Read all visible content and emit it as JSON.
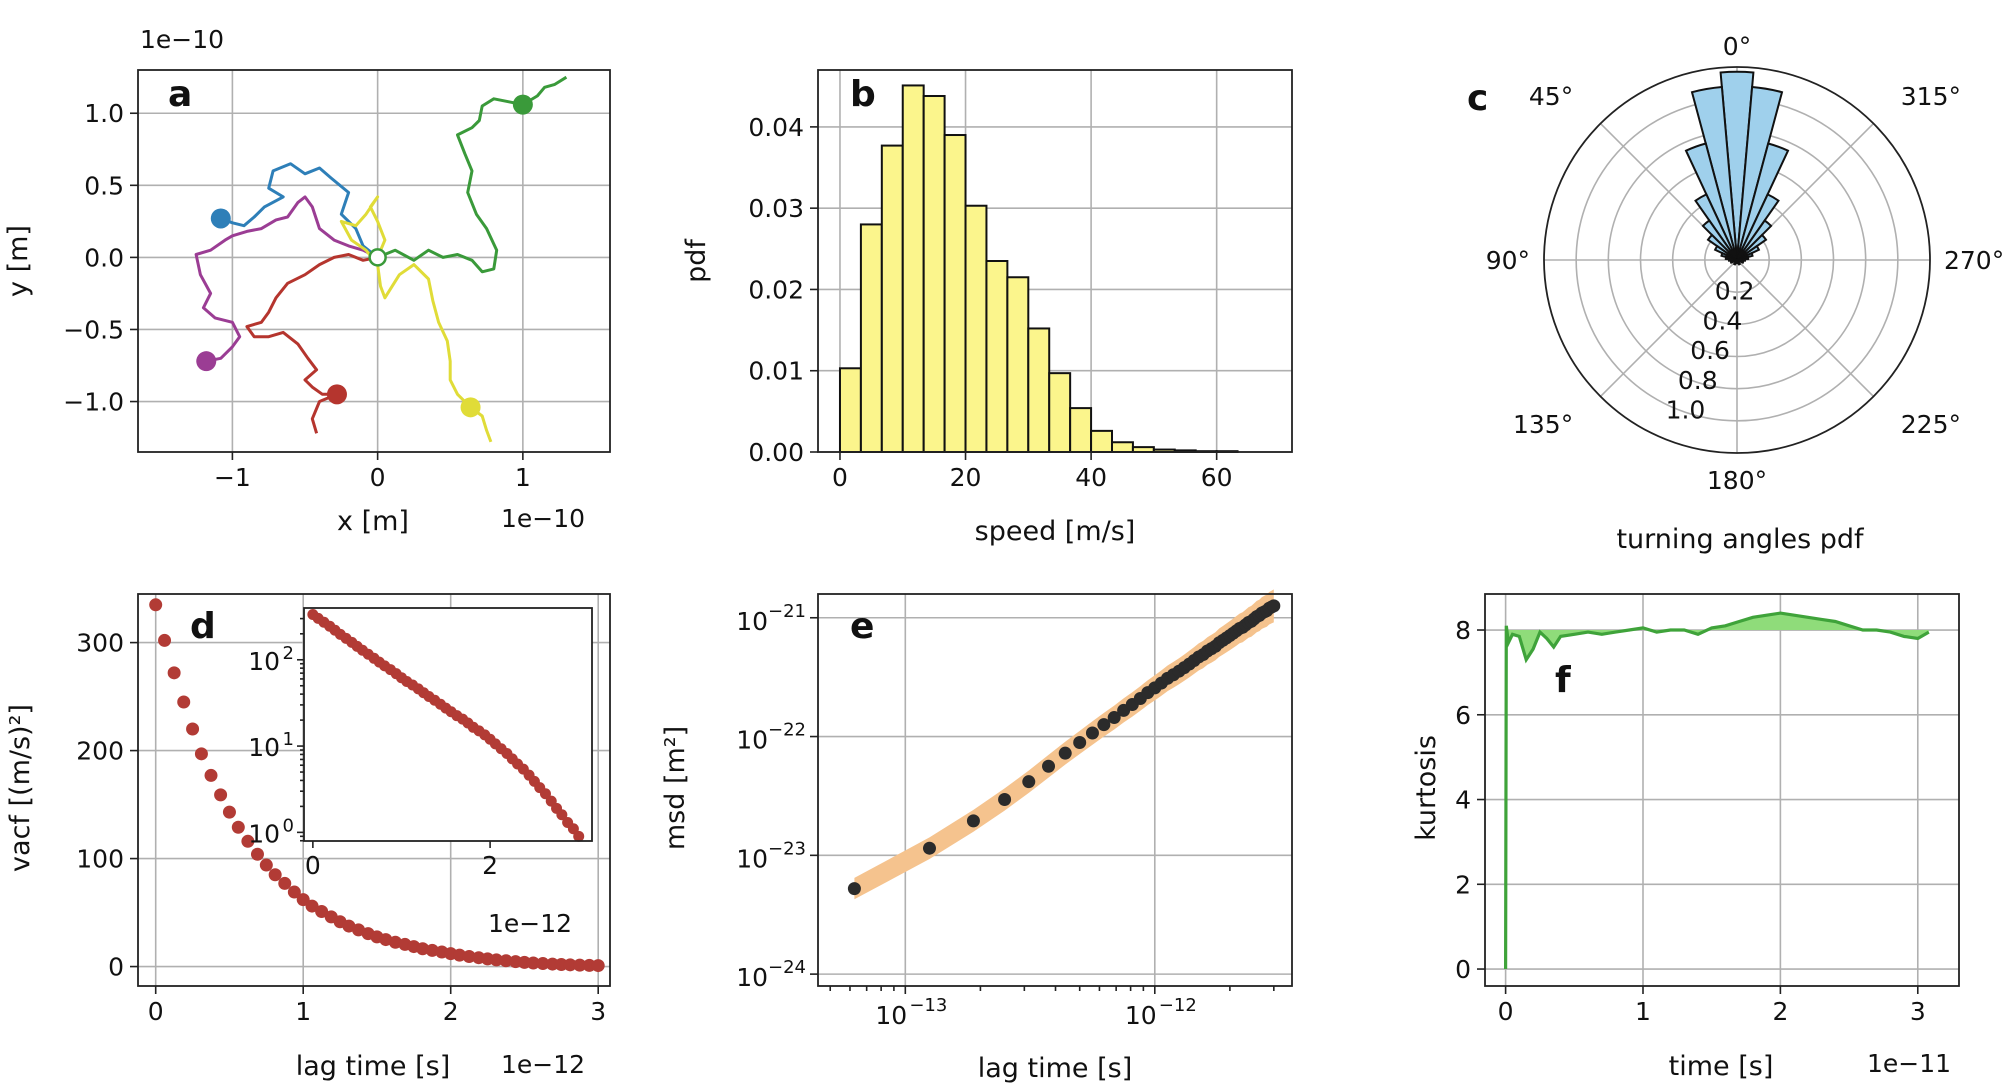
{
  "chart_data": [
    {
      "panel": "a",
      "type": "line",
      "xlabel": "x [m]",
      "ylabel": "y [m]",
      "x_offset_text": "1e−10",
      "y_offset_text": "1e−10",
      "xlim": [
        -1.65,
        1.6
      ],
      "ylim": [
        -1.35,
        1.3
      ],
      "xticks": [
        -1,
        0,
        1
      ],
      "xtick_labels": [
        "−1",
        "0",
        "1"
      ],
      "yticks": [
        -1.0,
        -0.5,
        0.0,
        0.5,
        1.0
      ],
      "ytick_labels": [
        "−1.0",
        "−0.5",
        "0.0",
        "0.5",
        "1.0"
      ],
      "grid": true,
      "start_point": [
        0.0,
        0.0
      ],
      "series": [
        {
          "color": "#2e7fb8",
          "end": [
            -1.08,
            0.27
          ],
          "points": [
            [
              0,
              0
            ],
            [
              -0.1,
              0.08
            ],
            [
              -0.15,
              0.2
            ],
            [
              -0.25,
              0.3
            ],
            [
              -0.2,
              0.45
            ],
            [
              -0.32,
              0.55
            ],
            [
              -0.4,
              0.62
            ],
            [
              -0.5,
              0.58
            ],
            [
              -0.6,
              0.65
            ],
            [
              -0.72,
              0.6
            ],
            [
              -0.75,
              0.48
            ],
            [
              -0.65,
              0.42
            ],
            [
              -0.78,
              0.35
            ],
            [
              -0.85,
              0.28
            ],
            [
              -0.92,
              0.22
            ],
            [
              -1.0,
              0.24
            ],
            [
              -1.08,
              0.27
            ]
          ]
        },
        {
          "color": "#3a9a3a",
          "end": [
            1.0,
            1.06
          ],
          "points": [
            [
              0,
              0
            ],
            [
              0.12,
              0.05
            ],
            [
              0.25,
              -0.02
            ],
            [
              0.35,
              0.05
            ],
            [
              0.45,
              0.0
            ],
            [
              0.55,
              0.02
            ],
            [
              0.65,
              -0.02
            ],
            [
              0.72,
              -0.1
            ],
            [
              0.8,
              -0.08
            ],
            [
              0.82,
              0.05
            ],
            [
              0.75,
              0.2
            ],
            [
              0.68,
              0.3
            ],
            [
              0.62,
              0.45
            ],
            [
              0.65,
              0.6
            ],
            [
              0.6,
              0.72
            ],
            [
              0.55,
              0.85
            ],
            [
              0.65,
              0.9
            ],
            [
              0.7,
              0.95
            ],
            [
              0.72,
              1.05
            ],
            [
              0.8,
              1.1
            ],
            [
              0.9,
              1.08
            ],
            [
              1.0,
              1.06
            ],
            [
              1.1,
              1.12
            ],
            [
              1.15,
              1.18
            ],
            [
              1.22,
              1.2
            ],
            [
              1.3,
              1.25
            ]
          ]
        },
        {
          "color": "#9b3d94",
          "end": [
            -1.18,
            -0.72
          ],
          "points": [
            [
              0,
              0
            ],
            [
              -0.1,
              0.05
            ],
            [
              -0.2,
              0.08
            ],
            [
              -0.3,
              0.12
            ],
            [
              -0.4,
              0.2
            ],
            [
              -0.45,
              0.35
            ],
            [
              -0.5,
              0.42
            ],
            [
              -0.55,
              0.38
            ],
            [
              -0.62,
              0.28
            ],
            [
              -0.7,
              0.26
            ],
            [
              -0.8,
              0.2
            ],
            [
              -0.9,
              0.18
            ],
            [
              -1.0,
              0.15
            ],
            [
              -1.05,
              0.12
            ],
            [
              -1.15,
              0.05
            ],
            [
              -1.25,
              0.02
            ],
            [
              -1.22,
              -0.12
            ],
            [
              -1.15,
              -0.25
            ],
            [
              -1.2,
              -0.35
            ],
            [
              -1.12,
              -0.42
            ],
            [
              -1.0,
              -0.45
            ],
            [
              -0.95,
              -0.55
            ],
            [
              -1.0,
              -0.62
            ],
            [
              -1.08,
              -0.7
            ],
            [
              -1.18,
              -0.72
            ]
          ]
        },
        {
          "color": "#b5352e",
          "end": [
            -0.28,
            -0.95
          ],
          "points": [
            [
              0,
              0
            ],
            [
              -0.1,
              -0.02
            ],
            [
              -0.2,
              0.02
            ],
            [
              -0.3,
              0.0
            ],
            [
              -0.4,
              -0.05
            ],
            [
              -0.5,
              -0.12
            ],
            [
              -0.62,
              -0.18
            ],
            [
              -0.7,
              -0.28
            ],
            [
              -0.75,
              -0.38
            ],
            [
              -0.8,
              -0.45
            ],
            [
              -0.9,
              -0.48
            ],
            [
              -0.85,
              -0.55
            ],
            [
              -0.75,
              -0.55
            ],
            [
              -0.65,
              -0.52
            ],
            [
              -0.55,
              -0.6
            ],
            [
              -0.48,
              -0.7
            ],
            [
              -0.42,
              -0.78
            ],
            [
              -0.5,
              -0.85
            ],
            [
              -0.45,
              -0.9
            ],
            [
              -0.38,
              -0.95
            ],
            [
              -0.28,
              -0.95
            ],
            [
              -0.4,
              -1.0
            ],
            [
              -0.45,
              -1.12
            ],
            [
              -0.42,
              -1.22
            ]
          ]
        },
        {
          "color": "#e0dc38",
          "end": [
            0.64,
            -1.04
          ],
          "points": [
            [
              0,
              0
            ],
            [
              0.05,
              0.12
            ],
            [
              0.0,
              0.25
            ],
            [
              -0.05,
              0.35
            ],
            [
              0.0,
              0.42
            ],
            [
              -0.08,
              0.3
            ],
            [
              -0.15,
              0.22
            ],
            [
              -0.25,
              0.25
            ],
            [
              -0.18,
              0.12
            ],
            [
              -0.08,
              0.05
            ],
            [
              0.0,
              -0.05
            ],
            [
              0.02,
              -0.2
            ],
            [
              0.05,
              -0.28
            ],
            [
              0.15,
              -0.12
            ],
            [
              0.25,
              -0.05
            ],
            [
              0.35,
              -0.15
            ],
            [
              0.38,
              -0.3
            ],
            [
              0.42,
              -0.45
            ],
            [
              0.48,
              -0.58
            ],
            [
              0.5,
              -0.72
            ],
            [
              0.5,
              -0.85
            ],
            [
              0.55,
              -0.95
            ],
            [
              0.64,
              -1.04
            ],
            [
              0.72,
              -1.1
            ],
            [
              0.75,
              -1.2
            ],
            [
              0.78,
              -1.28
            ]
          ]
        }
      ]
    },
    {
      "panel": "b",
      "type": "bar",
      "xlabel": "speed [m/s]",
      "ylabel": "pdf",
      "xlim": [
        -3.5,
        72
      ],
      "ylim": [
        0,
        0.047
      ],
      "xticks": [
        0,
        20,
        40,
        60
      ],
      "yticks": [
        0.0,
        0.01,
        0.02,
        0.03,
        0.04
      ],
      "ytick_labels": [
        "0.00",
        "0.01",
        "0.02",
        "0.03",
        "0.04"
      ],
      "grid": true,
      "bin_width": 3.333,
      "bin_start": 0,
      "values": [
        0.0103,
        0.028,
        0.0377,
        0.0451,
        0.0438,
        0.039,
        0.0303,
        0.0235,
        0.0215,
        0.0152,
        0.0097,
        0.0054,
        0.0026,
        0.0012,
        0.0006,
        0.0003,
        0.0002,
        0.0001,
        0.0001,
        0.0,
        0.0
      ],
      "bar_color": "#fbf58c"
    },
    {
      "panel": "c",
      "type": "polar-bar",
      "xlabel": "turning angles pdf",
      "angle_labels": [
        "0°",
        "45°",
        "90°",
        "135°",
        "180°",
        "225°",
        "270°",
        "315°"
      ],
      "radial_ticks": [
        0.2,
        0.4,
        0.6,
        0.8,
        1.0
      ],
      "radial_tick_labels": [
        "0.2",
        "0.4",
        "0.6",
        "0.8",
        "1.0"
      ],
      "rmax": 1.2,
      "grid": true,
      "bar_color": "#9fd0ec",
      "half_width_deg": 5,
      "bins": [
        {
          "angle_deg": 0,
          "r": 1.17
        },
        {
          "angle_deg": 10,
          "r": 1.08
        },
        {
          "angle_deg": -10,
          "r": 1.08
        },
        {
          "angle_deg": 20,
          "r": 0.75
        },
        {
          "angle_deg": -20,
          "r": 0.75
        },
        {
          "angle_deg": 30,
          "r": 0.45
        },
        {
          "angle_deg": -30,
          "r": 0.45
        },
        {
          "angle_deg": 40,
          "r": 0.3
        },
        {
          "angle_deg": -40,
          "r": 0.3
        },
        {
          "angle_deg": 50,
          "r": 0.22
        },
        {
          "angle_deg": -50,
          "r": 0.22
        },
        {
          "angle_deg": 60,
          "r": 0.15
        },
        {
          "angle_deg": -60,
          "r": 0.15
        },
        {
          "angle_deg": 70,
          "r": 0.1
        },
        {
          "angle_deg": -70,
          "r": 0.1
        },
        {
          "angle_deg": 80,
          "r": 0.07
        },
        {
          "angle_deg": -80,
          "r": 0.07
        },
        {
          "angle_deg": 90,
          "r": 0.05
        },
        {
          "angle_deg": -90,
          "r": 0.05
        },
        {
          "angle_deg": 110,
          "r": 0.04
        },
        {
          "angle_deg": -110,
          "r": 0.04
        },
        {
          "angle_deg": 150,
          "r": 0.03
        },
        {
          "angle_deg": -150,
          "r": 0.03
        },
        {
          "angle_deg": 180,
          "r": 0.02
        }
      ]
    },
    {
      "panel": "d",
      "type": "scatter",
      "xlabel": "lag time [s]",
      "ylabel": "vacf [(m/s)²]",
      "x_offset_text": "1e−12",
      "xlim": [
        -0.12,
        3.08
      ],
      "ylim": [
        -18,
        345
      ],
      "xticks": [
        0,
        1,
        2,
        3
      ],
      "yticks": [
        0,
        100,
        200,
        300
      ],
      "grid": true,
      "marker_color": "#b23b35",
      "x": [
        0,
        0.06,
        0.125,
        0.19,
        0.25,
        0.31,
        0.375,
        0.44,
        0.5,
        0.56,
        0.625,
        0.69,
        0.75,
        0.81,
        0.875,
        0.94,
        1.0,
        1.06,
        1.125,
        1.19,
        1.25,
        1.31,
        1.375,
        1.44,
        1.5,
        1.56,
        1.625,
        1.69,
        1.75,
        1.81,
        1.875,
        1.94,
        2.0,
        2.06,
        2.125,
        2.19,
        2.25,
        2.31,
        2.375,
        2.44,
        2.5,
        2.56,
        2.625,
        2.69,
        2.75,
        2.81,
        2.875,
        2.94,
        3.0
      ],
      "y": [
        335,
        302,
        272,
        245,
        220,
        197,
        177,
        159,
        143,
        129,
        116,
        104,
        94,
        85,
        77,
        69,
        62,
        56,
        51,
        46,
        41.5,
        37.5,
        34,
        30.5,
        27.5,
        25,
        22.5,
        20.5,
        18.5,
        16.5,
        15,
        13.5,
        12,
        10.6,
        9.3,
        8.2,
        7.1,
        6.2,
        5.4,
        4.6,
        3.9,
        3.3,
        2.8,
        2.3,
        1.9,
        1.6,
        1.3,
        1.1,
        0.9
      ],
      "inset": {
        "x_offset_text": "1e−12",
        "xlim": [
          -0.1,
          3.15
        ],
        "ylog": true,
        "ylim_log10": [
          -0.1,
          2.6
        ],
        "xticks": [
          0,
          2
        ],
        "yticks_log10": [
          0,
          1,
          2
        ],
        "ytick_labels": [
          "10",
          "10",
          "10"
        ],
        "ytick_exponents": [
          "0",
          "1",
          "2"
        ]
      }
    },
    {
      "panel": "e",
      "type": "scatter",
      "xlabel": "lag time [s]",
      "ylabel": "msd [m²]",
      "xlog": true,
      "ylog": true,
      "xlim_log10": [
        -13.35,
        -11.45
      ],
      "ylim_log10": [
        -24.1,
        -20.8
      ],
      "xticks_log10": [
        -13,
        -12
      ],
      "xtick_labels": [
        "10",
        "10"
      ],
      "xtick_exponents": [
        "−13",
        "−12"
      ],
      "yticks_log10": [
        -24,
        -23,
        -22,
        -21
      ],
      "ytick_labels": [
        "10",
        "10",
        "10",
        "10"
      ],
      "ytick_exponents": [
        "−24",
        "−23",
        "−22",
        "−21"
      ],
      "grid": true,
      "marker_color": "#2b2b2b",
      "band_color": "#f5c38e",
      "x": [
        6.25e-14,
        1.25e-13,
        1.875e-13,
        2.5e-13,
        3.125e-13,
        3.75e-13,
        4.375e-13,
        5e-13,
        5.625e-13,
        6.25e-13,
        6.875e-13,
        7.5e-13,
        8.125e-13,
        8.75e-13,
        9.375e-13,
        1e-12,
        1.0625e-12,
        1.125e-12,
        1.1875e-12,
        1.25e-12,
        1.3125e-12,
        1.375e-12,
        1.4375e-12,
        1.5e-12,
        1.5625e-12,
        1.625e-12,
        1.6875e-12,
        1.75e-12,
        1.8125e-12,
        1.875e-12,
        1.9375e-12,
        2e-12,
        2.0625e-12,
        2.125e-12,
        2.1875e-12,
        2.25e-12,
        2.3125e-12,
        2.375e-12,
        2.4375e-12,
        2.5e-12,
        2.5625e-12,
        2.625e-12,
        2.6875e-12,
        2.75e-12,
        2.8125e-12,
        2.875e-12,
        2.9375e-12,
        3e-12
      ],
      "y_log10": [
        -23.28,
        -22.94,
        -22.71,
        -22.53,
        -22.38,
        -22.25,
        -22.14,
        -22.05,
        -21.97,
        -21.9,
        -21.84,
        -21.78,
        -21.73,
        -21.68,
        -21.63,
        -21.59,
        -21.55,
        -21.51,
        -21.48,
        -21.45,
        -21.42,
        -21.39,
        -21.36,
        -21.33,
        -21.31,
        -21.28,
        -21.26,
        -21.24,
        -21.21,
        -21.19,
        -21.17,
        -21.15,
        -21.13,
        -21.11,
        -21.09,
        -21.08,
        -21.06,
        -21.04,
        -21.03,
        -21.01,
        -20.99,
        -20.98,
        -20.96,
        -20.95,
        -20.94,
        -20.92,
        -20.91,
        -20.9
      ],
      "band_log10_halfwidth": 0.1
    },
    {
      "panel": "f",
      "type": "line",
      "xlabel": "time [s]",
      "ylabel": "kurtosis",
      "x_offset_text": "1e−11",
      "xlim": [
        -0.15,
        3.3
      ],
      "ylim": [
        -0.4,
        8.85
      ],
      "xticks": [
        0,
        1,
        2,
        3
      ],
      "yticks": [
        0,
        2,
        4,
        6,
        8
      ],
      "grid": true,
      "reference_value": 8,
      "line_color": "#3fa33a",
      "fill_color": "#8fdc7a",
      "x": [
        0,
        0.005,
        0.02,
        0.05,
        0.1,
        0.15,
        0.2,
        0.25,
        0.3,
        0.35,
        0.4,
        0.5,
        0.6,
        0.7,
        0.8,
        0.9,
        1.0,
        1.1,
        1.2,
        1.3,
        1.4,
        1.5,
        1.6,
        1.7,
        1.8,
        1.9,
        2.0,
        2.1,
        2.2,
        2.3,
        2.4,
        2.5,
        2.6,
        2.7,
        2.8,
        2.9,
        3.0,
        3.08
      ],
      "y": [
        0,
        8.1,
        7.7,
        7.9,
        7.85,
        7.3,
        7.55,
        7.95,
        7.8,
        7.6,
        7.85,
        7.9,
        7.95,
        7.9,
        7.95,
        8.0,
        8.05,
        7.95,
        8.0,
        8.0,
        7.9,
        8.05,
        8.1,
        8.2,
        8.3,
        8.35,
        8.4,
        8.35,
        8.3,
        8.25,
        8.2,
        8.1,
        8.0,
        8.0,
        7.95,
        7.85,
        7.8,
        7.95
      ]
    }
  ]
}
